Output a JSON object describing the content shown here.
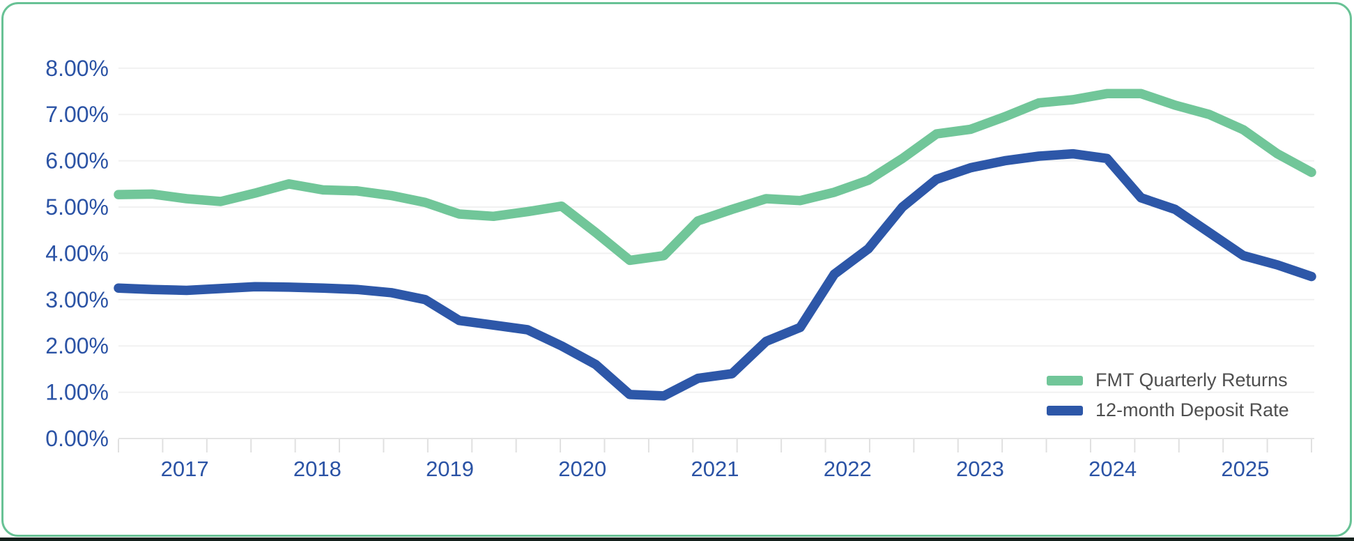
{
  "chart_data": {
    "type": "line",
    "title": "",
    "x_labels": [
      "2017",
      "2018",
      "2019",
      "2020",
      "2021",
      "2022",
      "2023",
      "2024",
      "2025"
    ],
    "x_frequency": "quarterly",
    "x_minor_ticks_per_year": 3,
    "y_ticks": [
      "0.00%",
      "1.00%",
      "2.00%",
      "3.00%",
      "4.00%",
      "5.00%",
      "6.00%",
      "7.00%",
      "8.00%"
    ],
    "ylim": [
      0,
      8
    ],
    "grid": "horizontal",
    "legend_position": "bottom-right",
    "series": [
      {
        "name": "FMT Quarterly Returns",
        "color": "#71c699",
        "values": [
          5.27,
          5.28,
          5.18,
          5.12,
          5.3,
          5.5,
          5.37,
          5.35,
          5.25,
          5.1,
          4.85,
          4.8,
          4.9,
          5.02,
          4.45,
          3.85,
          3.95,
          4.7,
          4.95,
          5.18,
          5.14,
          5.32,
          5.58,
          6.05,
          6.58,
          6.68,
          6.95,
          7.25,
          7.32,
          7.45,
          7.45,
          7.2,
          7.0,
          6.67,
          6.15,
          5.75
        ]
      },
      {
        "name": "12-month Deposit Rate",
        "color": "#2d57a8",
        "values": [
          3.25,
          3.22,
          3.2,
          3.24,
          3.28,
          3.27,
          3.25,
          3.22,
          3.15,
          3.0,
          2.55,
          2.45,
          2.35,
          2.0,
          1.6,
          0.95,
          0.92,
          1.3,
          1.4,
          2.1,
          2.4,
          3.55,
          4.1,
          5.0,
          5.6,
          5.85,
          6.0,
          6.1,
          6.15,
          6.05,
          5.2,
          4.95,
          4.45,
          3.95,
          3.75,
          3.5
        ]
      }
    ]
  },
  "colors": {
    "card_border": "#68c295",
    "axis_label": "#2b53a5",
    "grid_line": "#f1f1f1",
    "axis_line": "#e4e4e4",
    "tick_line": "#e0e0e0",
    "legend_text": "#4f4f4f",
    "background": "#ffffff",
    "bottom_strip": "#14201c"
  }
}
